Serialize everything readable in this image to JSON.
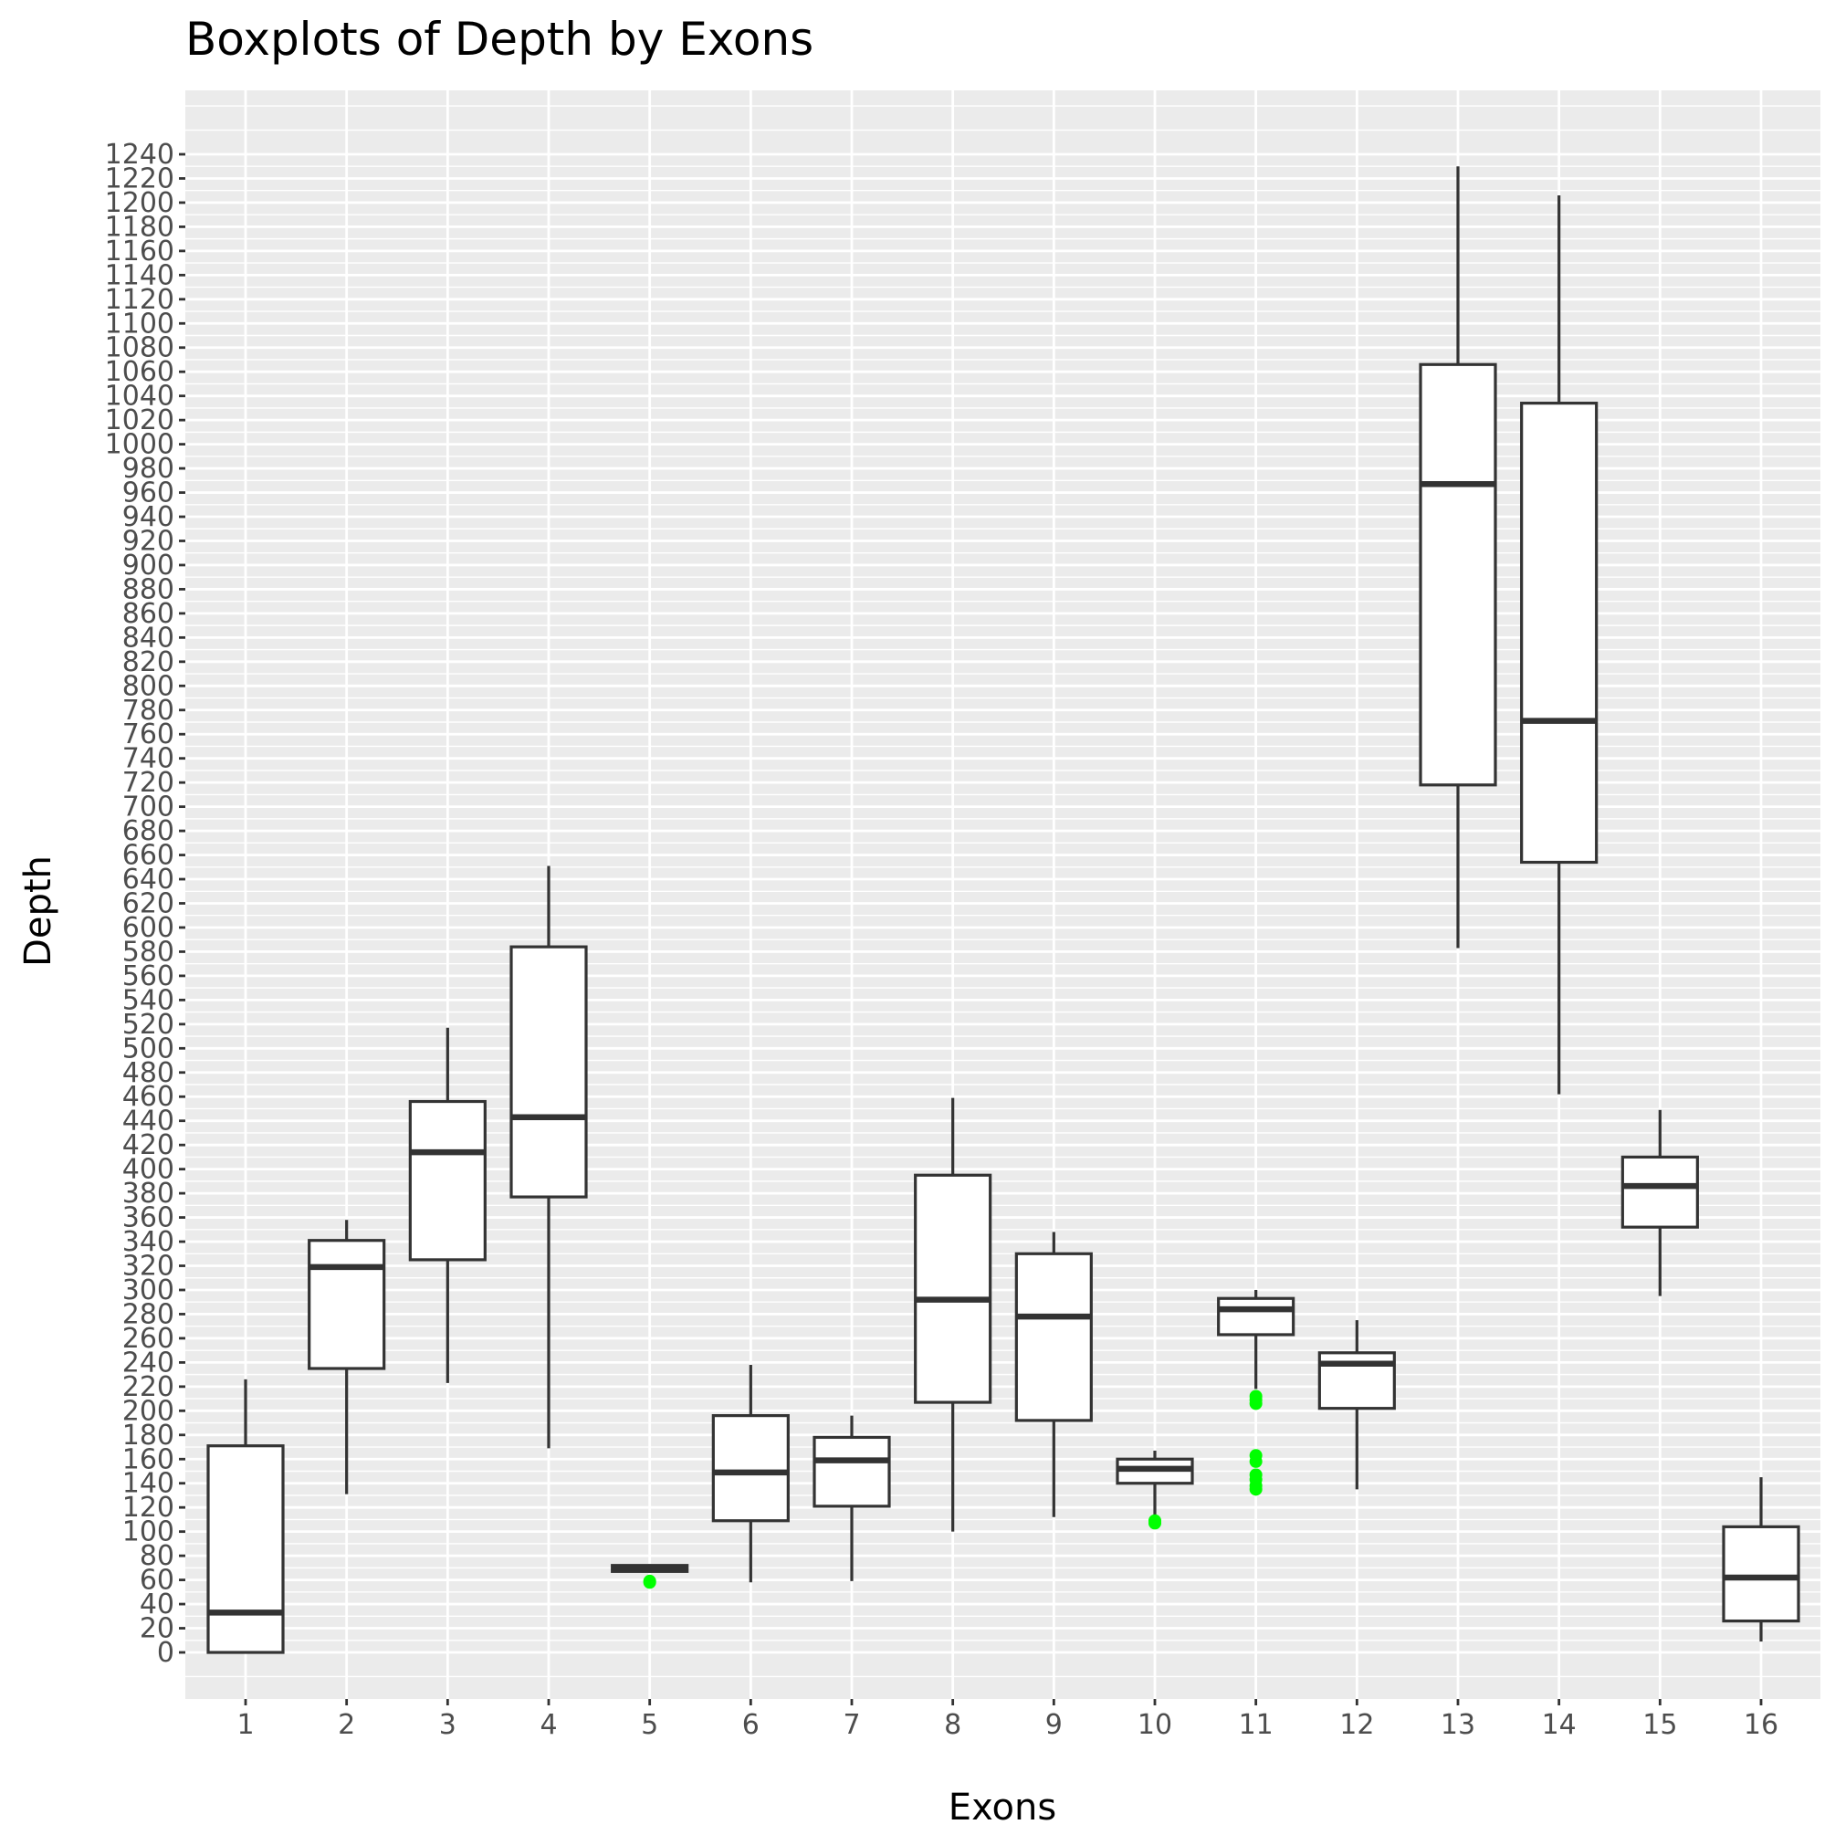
{
  "chart_data": {
    "type": "boxplot",
    "title": "Boxplots of Depth by Exons",
    "xlabel": "Exons",
    "ylabel": "Depth",
    "ylim": [
      -60,
      1320
    ],
    "y_ticks": [
      0,
      20,
      40,
      60,
      80,
      100,
      120,
      140,
      160,
      180,
      200,
      220,
      240,
      260,
      280,
      300,
      320,
      340,
      360,
      380,
      400,
      420,
      440,
      460,
      480,
      500,
      520,
      540,
      560,
      580,
      600,
      620,
      640,
      660,
      680,
      700,
      720,
      740,
      760,
      780,
      800,
      820,
      840,
      860,
      880,
      900,
      920,
      940,
      960,
      980,
      1000,
      1020,
      1040,
      1060,
      1080,
      1100,
      1120,
      1140,
      1160,
      1180,
      1200,
      1220,
      1240
    ],
    "categories": [
      "1",
      "2",
      "3",
      "4",
      "5",
      "6",
      "7",
      "8",
      "9",
      "10",
      "11",
      "12",
      "13",
      "14",
      "15",
      "16"
    ],
    "outlier_color": "#00ff00",
    "boxes": [
      {
        "exon": "1",
        "whisker_low": 0,
        "q1": 0,
        "median": 33,
        "q3": 171,
        "whisker_high": 226,
        "outliers": []
      },
      {
        "exon": "2",
        "whisker_low": 131,
        "q1": 235,
        "median": 319,
        "q3": 341,
        "whisker_high": 358,
        "outliers": []
      },
      {
        "exon": "3",
        "whisker_low": 223,
        "q1": 325,
        "median": 414,
        "q3": 456,
        "whisker_high": 517,
        "outliers": []
      },
      {
        "exon": "4",
        "whisker_low": 169,
        "q1": 377,
        "median": 443,
        "q3": 584,
        "whisker_high": 651,
        "outliers": []
      },
      {
        "exon": "5",
        "whisker_low": 66,
        "q1": 67,
        "median": 70,
        "q3": 72,
        "whisker_high": 73,
        "outliers": [
          58,
          59
        ]
      },
      {
        "exon": "6",
        "whisker_low": 58,
        "q1": 109,
        "median": 149,
        "q3": 196,
        "whisker_high": 238,
        "outliers": []
      },
      {
        "exon": "7",
        "whisker_low": 59,
        "q1": 121,
        "median": 159,
        "q3": 178,
        "whisker_high": 196,
        "outliers": []
      },
      {
        "exon": "8",
        "whisker_low": 100,
        "q1": 207,
        "median": 292,
        "q3": 395,
        "whisker_high": 459,
        "outliers": []
      },
      {
        "exon": "9",
        "whisker_low": 112,
        "q1": 192,
        "median": 278,
        "q3": 330,
        "whisker_high": 348,
        "outliers": []
      },
      {
        "exon": "10",
        "whisker_low": 112,
        "q1": 140,
        "median": 152,
        "q3": 160,
        "whisker_high": 167,
        "outliers": [
          107,
          109
        ]
      },
      {
        "exon": "11",
        "whisker_low": 218,
        "q1": 263,
        "median": 284,
        "q3": 293,
        "whisker_high": 300,
        "outliers": [
          135,
          138,
          143,
          147,
          158,
          163,
          206,
          209,
          212
        ]
      },
      {
        "exon": "12",
        "whisker_low": 135,
        "q1": 202,
        "median": 239,
        "q3": 248,
        "whisker_high": 275,
        "outliers": []
      },
      {
        "exon": "13",
        "whisker_low": 583,
        "q1": 718,
        "median": 967,
        "q3": 1066,
        "whisker_high": 1230,
        "outliers": []
      },
      {
        "exon": "14",
        "whisker_low": 462,
        "q1": 654,
        "median": 771,
        "q3": 1034,
        "whisker_high": 1206,
        "outliers": []
      },
      {
        "exon": "15",
        "whisker_low": 295,
        "q1": 352,
        "median": 386,
        "q3": 410,
        "whisker_high": 449,
        "outliers": []
      },
      {
        "exon": "16",
        "whisker_low": 9,
        "q1": 26,
        "median": 62,
        "q3": 104,
        "whisker_high": 145,
        "outliers": []
      }
    ]
  }
}
